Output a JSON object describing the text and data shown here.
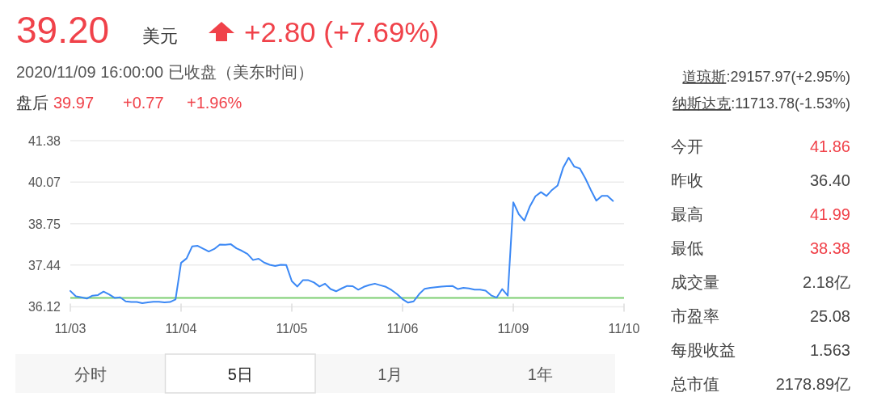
{
  "chart_data": [
    {
      "type": "line",
      "categories": [
        "11/03",
        null,
        null,
        null,
        null,
        null,
        null,
        null,
        null,
        null,
        null,
        null,
        null,
        null,
        null,
        null,
        null,
        null,
        null,
        null,
        "11/04",
        null,
        null,
        null,
        null,
        null,
        null,
        null,
        null,
        null,
        null,
        null,
        null,
        null,
        null,
        null,
        null,
        null,
        null,
        null,
        "11/05",
        null,
        null,
        null,
        null,
        null,
        null,
        null,
        null,
        null,
        null,
        null,
        null,
        null,
        null,
        null,
        null,
        null,
        null,
        null,
        "11/06",
        null,
        null,
        null,
        null,
        null,
        null,
        null,
        null,
        null,
        null,
        null,
        null,
        null,
        null,
        null,
        null,
        null,
        null,
        null,
        "11/09",
        null,
        null,
        null,
        null,
        null,
        null,
        null,
        null,
        null,
        null,
        null,
        null,
        null,
        null,
        null,
        null,
        null,
        null,
        null,
        "11/10"
      ],
      "ylim": [
        36.12,
        41.38
      ],
      "yticks": [
        36.12,
        37.44,
        38.75,
        40.07,
        41.38
      ],
      "grid": "y",
      "ref_lines": [
        {
          "axis": "y",
          "value": 36.4,
          "color": "#7ccf72"
        }
      ],
      "series": [
        {
          "color": "#3b88f5",
          "values": [
            36.62,
            36.45,
            36.42,
            36.38,
            36.47,
            36.49,
            36.6,
            36.51,
            36.4,
            36.42,
            36.29,
            36.27,
            36.27,
            36.23,
            36.26,
            36.28,
            36.28,
            36.26,
            36.27,
            36.35,
            37.51,
            37.65,
            38.03,
            38.05,
            37.96,
            37.87,
            37.95,
            38.09,
            38.08,
            38.1,
            37.97,
            37.89,
            37.79,
            37.6,
            37.64,
            37.52,
            37.45,
            37.41,
            37.45,
            37.44,
            36.93,
            36.76,
            36.96,
            36.96,
            36.89,
            36.76,
            36.85,
            36.68,
            36.61,
            36.7,
            36.78,
            36.77,
            36.66,
            36.75,
            36.81,
            36.85,
            36.8,
            36.75,
            36.65,
            36.52,
            36.36,
            36.25,
            36.29,
            36.52,
            36.69,
            36.72,
            36.74,
            36.76,
            36.77,
            36.78,
            36.68,
            36.72,
            36.7,
            36.66,
            36.66,
            36.63,
            36.48,
            36.41,
            36.68,
            36.47,
            39.43,
            39.05,
            38.85,
            39.3,
            39.62,
            39.75,
            39.63,
            39.82,
            39.96,
            40.52,
            40.84,
            40.56,
            40.5,
            40.19,
            39.82,
            39.48,
            39.63,
            39.63,
            39.47,
            null,
            null
          ]
        }
      ]
    },
    {
      "type": "other",
      "annotations": [
        "39.20",
        "美元",
        "+2.80 (+7.69%)",
        "2020/11/09 16:00:00  已收盘（美东时间）",
        "盘后",
        "39.97",
        "+0.77",
        "+1.96%",
        "道琼斯",
        ":29157.97(+2.95%)",
        "纳斯达克",
        ":11713.78(-1.53%)",
        "今开",
        "41.86",
        "昨收",
        "36.40",
        "最高",
        "41.99",
        "最低",
        "38.38",
        "成交量",
        "2.18亿",
        "市盈率",
        "25.08",
        "每股收益",
        "1.563",
        "总市值",
        "2178.89亿",
        "分时",
        "5日",
        "1月",
        "1年"
      ]
    }
  ]
}
